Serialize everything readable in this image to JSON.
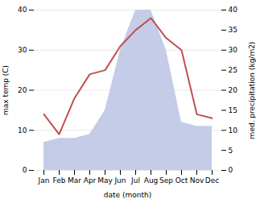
{
  "chart_data": {
    "type": "line",
    "xlabel": "date (month)",
    "ylabel": "max temp (C)",
    "y2label": "med. precipitation (kg/m2)",
    "categories": [
      "Jan",
      "Feb",
      "Mar",
      "Apr",
      "May",
      "Jun",
      "Jul",
      "Aug",
      "Sep",
      "Oct",
      "Nov",
      "Dec"
    ],
    "series": [
      {
        "type": "area",
        "axis": "y2",
        "color": "#c5cce8",
        "values": [
          7,
          8,
          8,
          9,
          15,
          30,
          40,
          40,
          30,
          12,
          11,
          11
        ]
      },
      {
        "type": "line",
        "color": "#c0504d",
        "values": [
          14,
          9,
          18,
          24,
          25,
          31,
          35,
          38,
          33,
          30,
          14,
          13
        ]
      }
    ],
    "ylim": [
      0,
      40
    ],
    "yticks": [
      0,
      10,
      20,
      30,
      40
    ],
    "y2lim": [
      0,
      40
    ],
    "y2ticks": [
      0,
      5,
      10,
      15,
      20,
      25,
      30,
      35,
      40
    ],
    "grid": true
  }
}
